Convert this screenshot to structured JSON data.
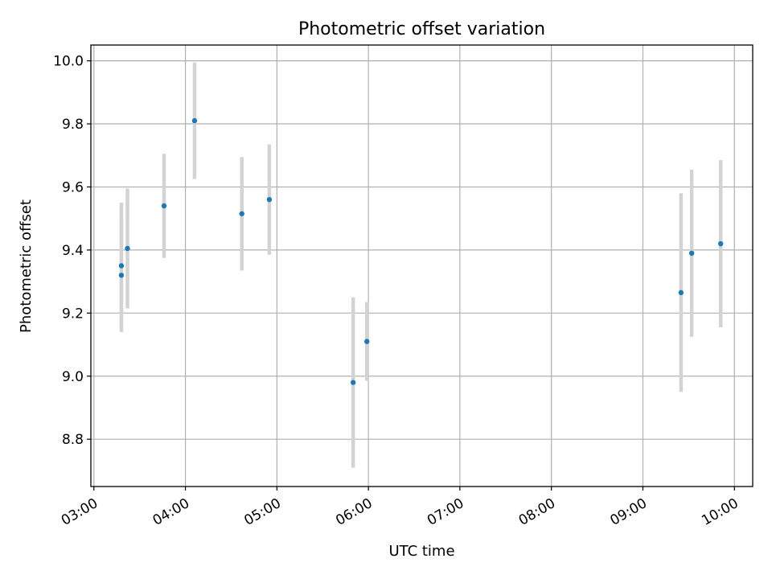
{
  "chart_data": {
    "type": "scatter",
    "title": "Photometric offset variation",
    "xlabel": "UTC time",
    "ylabel": "Photometric offset",
    "x_tick_labels": [
      "03:00",
      "04:00",
      "05:00",
      "06:00",
      "07:00",
      "08:00",
      "09:00",
      "10:00"
    ],
    "y_tick_labels": [
      "8.8",
      "9.0",
      "9.2",
      "9.4",
      "9.6",
      "9.8",
      "10.0"
    ],
    "y_ticks": [
      8.8,
      9.0,
      9.2,
      9.4,
      9.6,
      9.8,
      10.0
    ],
    "xlim": [
      "02:58",
      "10:12"
    ],
    "ylim": [
      8.65,
      10.05
    ],
    "grid": true,
    "series": [
      {
        "color": "#1f77b4",
        "errorbar_color": "#d3d3d3",
        "points": [
          {
            "x": "03:18",
            "y": 9.32,
            "yerr": 0.18
          },
          {
            "x": "03:18",
            "y": 9.35,
            "yerr": 0.2
          },
          {
            "x": "03:22",
            "y": 9.405,
            "yerr": 0.19
          },
          {
            "x": "03:46",
            "y": 9.54,
            "yerr": 0.165
          },
          {
            "x": "04:06",
            "y": 9.81,
            "yerr": 0.185
          },
          {
            "x": "04:37",
            "y": 9.515,
            "yerr": 0.18
          },
          {
            "x": "04:55",
            "y": 9.56,
            "yerr": 0.175
          },
          {
            "x": "05:50",
            "y": 8.98,
            "yerr": 0.27
          },
          {
            "x": "05:59",
            "y": 9.11,
            "yerr": 0.125
          },
          {
            "x": "09:25",
            "y": 9.265,
            "yerr": 0.315
          },
          {
            "x": "09:32",
            "y": 9.39,
            "yerr": 0.265
          },
          {
            "x": "09:51",
            "y": 9.42,
            "yerr": 0.265
          }
        ]
      }
    ]
  }
}
